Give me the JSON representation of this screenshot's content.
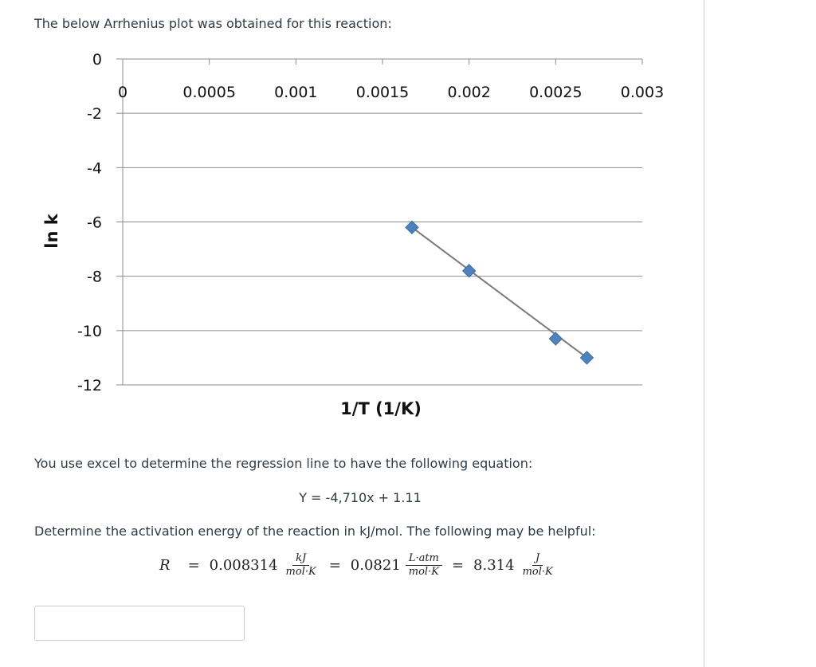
{
  "question": {
    "intro": "The below Arrhenius plot was obtained for this reaction:",
    "regression_text": "You use excel to determine the regression line to have the following equation:",
    "equation": "Y = -4,710x + 1.11",
    "task": "Determine the activation energy of the reaction in kJ/mol. The following may be helpful:",
    "gas_constant": {
      "symbol": "R",
      "equals": "=",
      "v1": "0.008314",
      "u1_num": "kJ",
      "u1_den": "mol·K",
      "v2": "0.0821",
      "u2_num": "L·atm",
      "u2_den": "mol·K",
      "v3": "8.314",
      "u3_num": "J",
      "u3_den": "mol·K"
    },
    "answer_value": ""
  },
  "chart_data": {
    "type": "scatter",
    "title": "",
    "xlabel": "1/T (1/K)",
    "ylabel": "ln k",
    "xlim": [
      0,
      0.003
    ],
    "ylim": [
      -12,
      0
    ],
    "x_ticks": [
      0,
      0.0005,
      0.001,
      0.0015,
      0.002,
      0.0025,
      0.003
    ],
    "x_tick_labels": [
      "0",
      "0.0005",
      "0.001",
      "0.0015",
      "0.002",
      "0.0025",
      "0.003"
    ],
    "y_ticks": [
      0,
      -2,
      -4,
      -6,
      -8,
      -10,
      -12
    ],
    "y_tick_labels": [
      "0",
      "-2",
      "-4",
      "-6",
      "-8",
      "-10",
      "-12"
    ],
    "grid": true,
    "series": [
      {
        "x": [
          0.00167,
          0.002,
          0.0025,
          0.00268
        ],
        "y": [
          -6.2,
          -7.8,
          -10.3,
          -11.0
        ],
        "color": "#4f81bd",
        "marker": "diamond",
        "trendline_color": "#7a7a7a"
      }
    ]
  }
}
